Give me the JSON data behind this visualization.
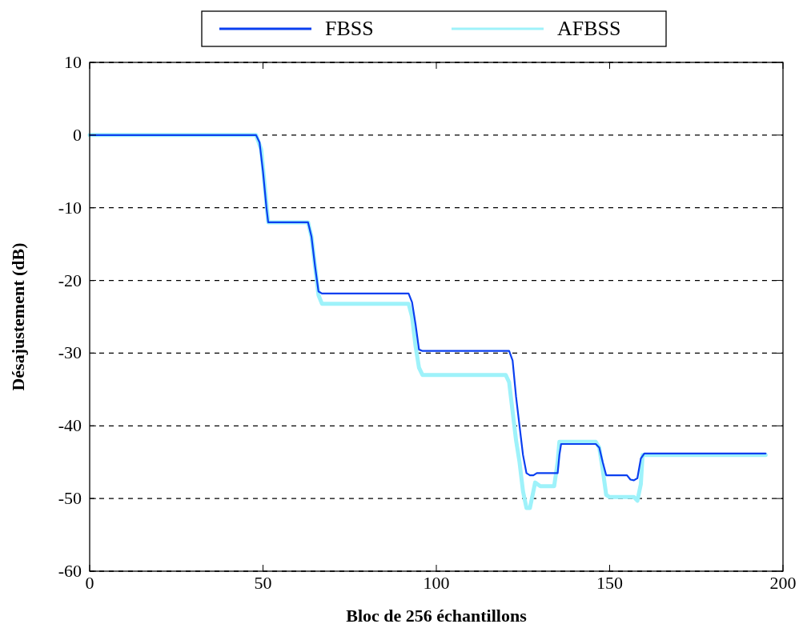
{
  "chart_data": {
    "type": "line",
    "xlabel": "Bloc de 256 échantillons",
    "ylabel": "Désajustement (dB)",
    "xlim": [
      0,
      200
    ],
    "ylim": [
      -60,
      10
    ],
    "xticks": [
      0,
      50,
      100,
      150,
      200
    ],
    "yticks": [
      -60,
      -50,
      -40,
      -30,
      -20,
      -10,
      0,
      10
    ],
    "grid": "y",
    "legend": "top",
    "line_style": "solid",
    "marker": "none",
    "series": [
      {
        "name": "FBSS",
        "color": "#0a3ff0",
        "x": [
          0,
          48,
          49,
          50,
          51,
          51.5,
          63,
          64,
          65,
          66,
          67,
          92,
          93,
          94,
          95,
          96,
          121,
          122,
          123,
          124,
          125,
          126,
          127,
          128,
          129,
          135,
          135.5,
          136,
          146,
          147,
          148,
          149,
          150,
          155,
          156,
          157,
          158,
          159,
          160,
          195
        ],
        "values": [
          0,
          0,
          -1,
          -5,
          -10,
          -12,
          -12,
          -14,
          -18,
          -21.5,
          -21.8,
          -21.8,
          -23,
          -26,
          -29.5,
          -29.7,
          -29.7,
          -31,
          -36,
          -40,
          -44,
          -46.5,
          -46.8,
          -46.8,
          -46.5,
          -46.5,
          -44,
          -42.5,
          -42.5,
          -43,
          -45,
          -46.8,
          -46.8,
          -46.8,
          -47.4,
          -47.5,
          -47.2,
          -44.5,
          -43.8,
          -43.8
        ]
      },
      {
        "name": "AFBSS",
        "color": "#9ef2fa",
        "x": [
          0,
          48,
          49.5,
          50.5,
          51.5,
          63,
          64,
          65,
          66,
          67,
          92,
          93,
          94,
          95,
          96,
          120,
          121,
          122,
          123,
          124,
          125,
          126,
          127,
          128,
          128.5,
          130,
          134,
          135,
          135.5,
          146,
          147,
          148,
          149,
          150,
          157,
          158,
          159,
          159.5,
          160,
          195
        ],
        "values": [
          0,
          0,
          -2,
          -7,
          -12,
          -12,
          -14,
          -18,
          -22,
          -23.2,
          -23.2,
          -25,
          -29,
          -32,
          -33,
          -33,
          -34,
          -38,
          -42,
          -45,
          -49,
          -51.3,
          -51.3,
          -49,
          -47.8,
          -48.3,
          -48.3,
          -45,
          -42.2,
          -42.2,
          -43,
          -46,
          -49.5,
          -49.8,
          -49.8,
          -50.3,
          -48,
          -44,
          -44,
          -44
        ]
      }
    ]
  }
}
